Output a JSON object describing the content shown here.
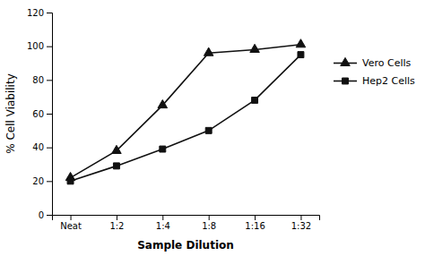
{
  "chart_data": {
    "type": "line",
    "categories": [
      "Neat",
      "1:2",
      "1:4",
      "1:8",
      "1:16",
      "1:32"
    ],
    "series": [
      {
        "name": "Vero Cells",
        "color": "#111111",
        "marker": "triangle",
        "values": [
          22,
          38,
          65,
          96,
          98,
          101
        ]
      },
      {
        "name": "Hep2 Cells",
        "color": "#111111",
        "marker": "square",
        "values": [
          20,
          29,
          39,
          50,
          68,
          95
        ]
      }
    ],
    "xlabel": "Sample Dilution",
    "ylabel": "% Cell Viability",
    "ylim": [
      0,
      120
    ],
    "yticks": [
      0,
      20,
      40,
      60,
      80,
      100,
      120
    ],
    "grid": false,
    "legend": "right"
  }
}
